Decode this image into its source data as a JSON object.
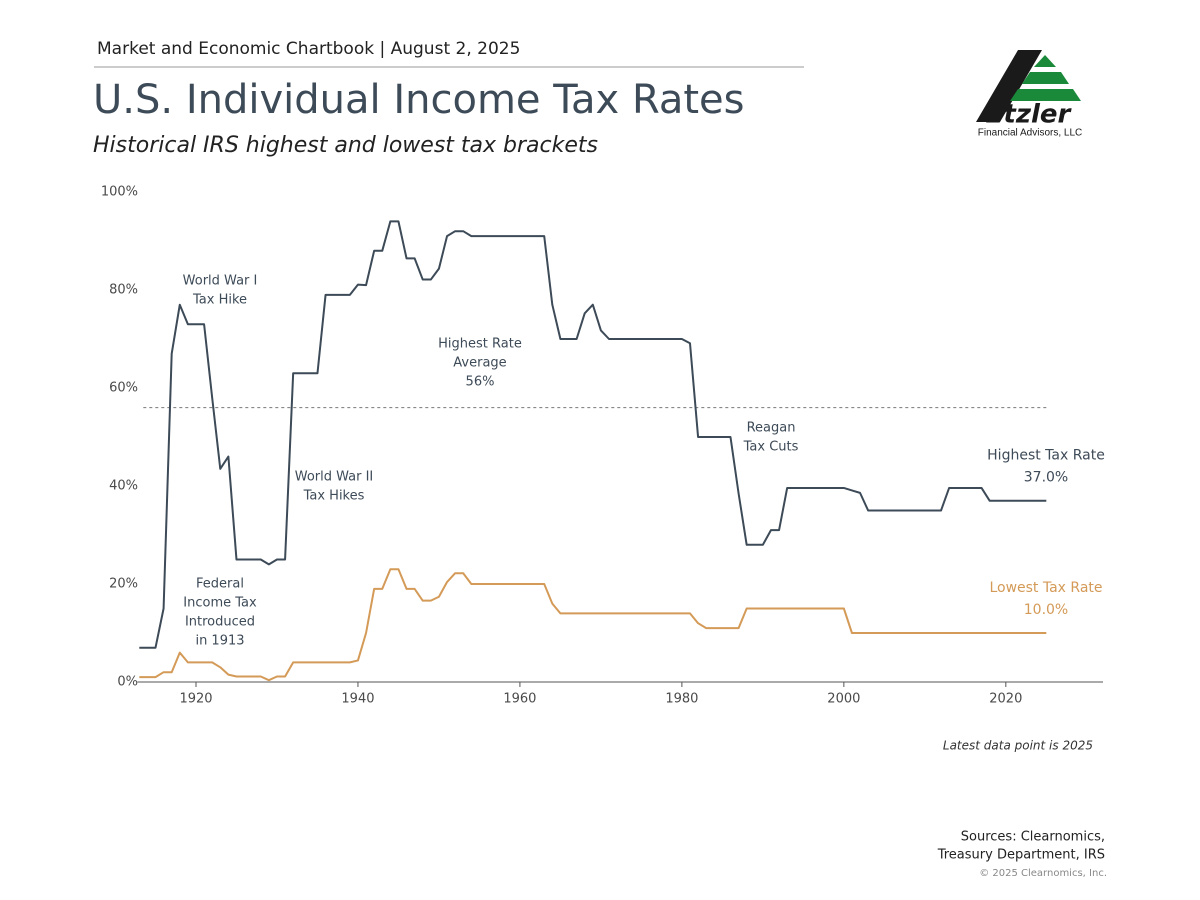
{
  "header": {
    "kicker": "Market and Economic Chartbook | August 2, 2025",
    "title": "U.S. Individual Income Tax Rates",
    "subtitle": "Historical IRS highest and lowest tax brackets",
    "logo": "Etzler",
    "logo_tagline": "Financial Advisors, LLC"
  },
  "chart_data": {
    "type": "line",
    "x": [
      1913,
      1914,
      1915,
      1916,
      1917,
      1918,
      1919,
      1920,
      1921,
      1922,
      1923,
      1924,
      1925,
      1926,
      1927,
      1928,
      1929,
      1930,
      1931,
      1932,
      1933,
      1934,
      1935,
      1936,
      1937,
      1938,
      1939,
      1940,
      1941,
      1942,
      1943,
      1944,
      1945,
      1946,
      1947,
      1948,
      1949,
      1950,
      1951,
      1952,
      1953,
      1954,
      1955,
      1956,
      1957,
      1958,
      1959,
      1960,
      1961,
      1962,
      1963,
      1964,
      1965,
      1966,
      1967,
      1968,
      1969,
      1970,
      1971,
      1972,
      1973,
      1974,
      1975,
      1976,
      1977,
      1978,
      1979,
      1980,
      1981,
      1982,
      1983,
      1984,
      1985,
      1986,
      1987,
      1988,
      1989,
      1990,
      1991,
      1992,
      1993,
      1994,
      1995,
      1996,
      1997,
      1998,
      1999,
      2000,
      2001,
      2002,
      2003,
      2004,
      2005,
      2006,
      2007,
      2008,
      2009,
      2010,
      2011,
      2012,
      2013,
      2014,
      2015,
      2016,
      2017,
      2018,
      2019,
      2020,
      2021,
      2022,
      2023,
      2024,
      2025
    ],
    "series": [
      {
        "name": "Highest Tax Rate",
        "color": "#3d4a57",
        "end_label": "37.0%",
        "values": [
          7,
          7,
          7,
          15,
          67,
          77,
          73,
          73,
          73,
          58,
          43.5,
          46,
          25,
          25,
          25,
          25,
          24,
          25,
          25,
          63,
          63,
          63,
          63,
          79,
          79,
          79,
          79,
          81.1,
          81,
          88,
          88,
          94,
          94,
          86.45,
          86.45,
          82.13,
          82.13,
          84.36,
          91,
          92,
          92,
          91,
          91,
          91,
          91,
          91,
          91,
          91,
          91,
          91,
          91,
          77,
          70,
          70,
          70,
          75.25,
          77,
          71.75,
          70,
          70,
          70,
          70,
          70,
          70,
          70,
          70,
          70,
          70,
          69.13,
          50,
          50,
          50,
          50,
          50,
          38.5,
          28,
          28,
          28,
          31,
          31,
          39.6,
          39.6,
          39.6,
          39.6,
          39.6,
          39.6,
          39.6,
          39.6,
          39.1,
          38.6,
          35,
          35,
          35,
          35,
          35,
          35,
          35,
          35,
          35,
          35,
          39.6,
          39.6,
          39.6,
          39.6,
          39.6,
          37,
          37,
          37,
          37,
          37,
          37,
          37,
          37
        ]
      },
      {
        "name": "Lowest Tax Rate",
        "color": "#d49a57",
        "end_label": "10.0%",
        "values": [
          1,
          1,
          1,
          2,
          2,
          6,
          4,
          4,
          4,
          4,
          3,
          1.5,
          1.125,
          1.125,
          1.125,
          1.125,
          0.375,
          1.125,
          1.125,
          4,
          4,
          4,
          4,
          4,
          4,
          4,
          4,
          4.4,
          10,
          19,
          19,
          23,
          23,
          19,
          19,
          16.6,
          16.6,
          17.4,
          20.4,
          22.2,
          22.2,
          20,
          20,
          20,
          20,
          20,
          20,
          20,
          20,
          20,
          20,
          16,
          14,
          14,
          14,
          14,
          14,
          14,
          14,
          14,
          14,
          14,
          14,
          14,
          14,
          14,
          14,
          14,
          14,
          12,
          11,
          11,
          11,
          11,
          11,
          15,
          15,
          15,
          15,
          15,
          15,
          15,
          15,
          15,
          15,
          15,
          15,
          15,
          10,
          10,
          10,
          10,
          10,
          10,
          10,
          10,
          10,
          10,
          10,
          10,
          10,
          10,
          10,
          10,
          10,
          10,
          10,
          10,
          10,
          10,
          10,
          10,
          10
        ]
      }
    ],
    "xlim": [
      1913,
      2032
    ],
    "xticks": [
      1920,
      1940,
      1960,
      1980,
      2000,
      2020
    ],
    "ylim": [
      0,
      100
    ],
    "yticks": [
      {
        "value": 0,
        "label": "0%"
      },
      {
        "value": 20,
        "label": "20%"
      },
      {
        "value": 40,
        "label": "40%"
      },
      {
        "value": 60,
        "label": "60%"
      },
      {
        "value": 80,
        "label": "80%"
      },
      {
        "value": 100,
        "label": "100%"
      }
    ],
    "reference_line": {
      "value": 56,
      "label": [
        "Highest Rate",
        "Average",
        "56%"
      ]
    },
    "annotations": [
      [
        "World War I",
        "Tax Hike"
      ],
      [
        "World War II",
        "Tax Hikes"
      ],
      [
        "Reagan",
        "Tax Cuts"
      ],
      [
        "Federal",
        "Income Tax",
        "Introduced",
        "in 1913"
      ]
    ]
  },
  "footer": {
    "note": "Latest data point is 2025",
    "sources": [
      "Sources: Clearnomics,",
      "Treasury Department, IRS"
    ],
    "copyright": "© 2025 Clearnomics, Inc."
  }
}
